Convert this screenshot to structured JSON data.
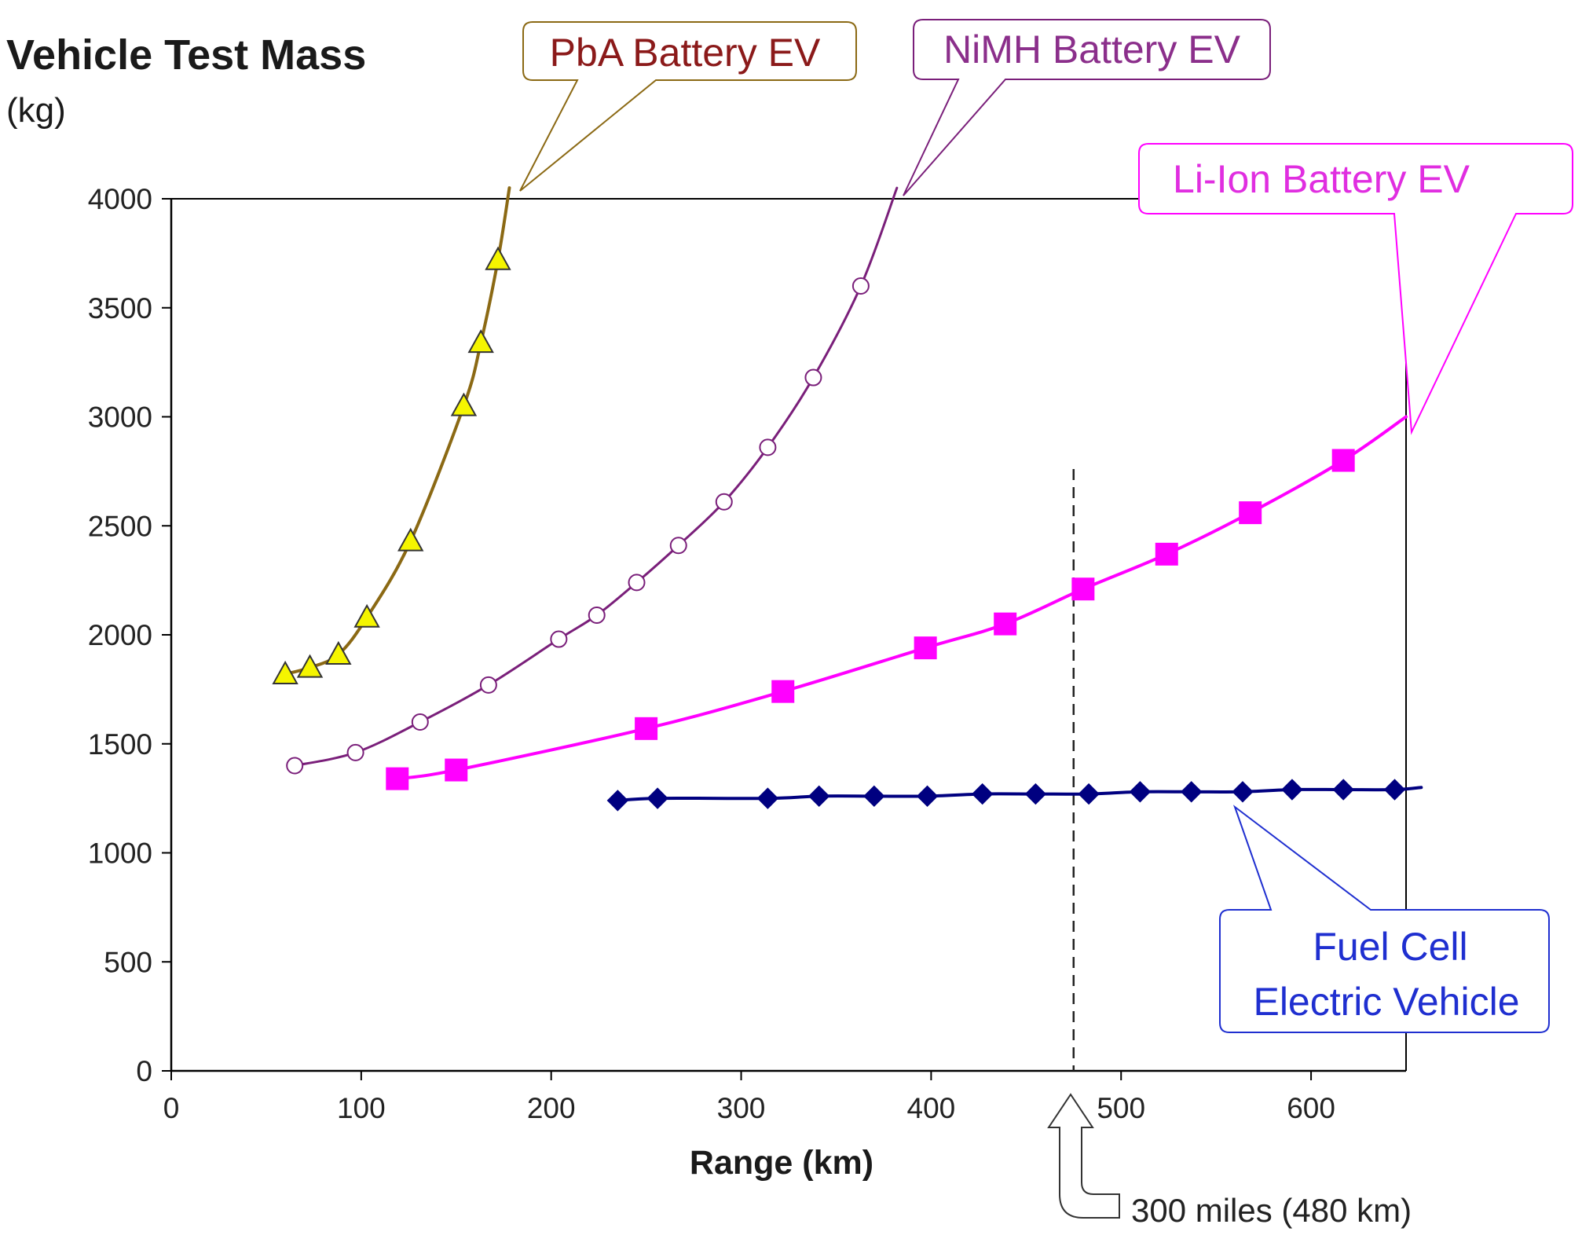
{
  "colors": {
    "pba_line": "#8b6914",
    "pba_marker": "#f5f500",
    "nimh": "#7a1f7a",
    "liion": "#ff00ff",
    "fcev": "#000080",
    "pba_text": "#8b1a1a",
    "nimh_text": "#8b2f8b",
    "liion_text": "#e02ee0",
    "fcev_text": "#1f2fd0"
  },
  "chart_data": {
    "type": "line",
    "ylabel": "Vehicle Test Mass",
    "ylabel_unit": "(kg)",
    "xlabel": "Range (km)",
    "xlim": [
      0,
      650
    ],
    "ylim": [
      0,
      4000
    ],
    "xticks": [
      "0",
      "100",
      "200",
      "300",
      "400",
      "500",
      "600"
    ],
    "yticks": [
      "0",
      "500",
      "1000",
      "1500",
      "2000",
      "2500",
      "3000",
      "3500",
      "4000"
    ],
    "grid": false,
    "series": [
      {
        "name": "PbA Battery EV",
        "marker": "triangle",
        "points": [
          [
            60,
            1820
          ],
          [
            73,
            1850
          ],
          [
            88,
            1910
          ],
          [
            103,
            2080
          ],
          [
            126,
            2430
          ],
          [
            154,
            3050
          ],
          [
            163,
            3340
          ],
          [
            172,
            3720
          ]
        ],
        "curve_end": [
          178,
          4050
        ]
      },
      {
        "name": "NiMH Battery EV",
        "marker": "circle",
        "points": [
          [
            65,
            1400
          ],
          [
            97,
            1460
          ],
          [
            131,
            1600
          ],
          [
            167,
            1770
          ],
          [
            204,
            1980
          ],
          [
            224,
            2090
          ],
          [
            245,
            2240
          ],
          [
            267,
            2410
          ],
          [
            291,
            2610
          ],
          [
            314,
            2860
          ],
          [
            338,
            3180
          ],
          [
            363,
            3600
          ]
        ],
        "curve_end": [
          382,
          4050
        ]
      },
      {
        "name": "Li-Ion Battery EV",
        "marker": "square",
        "points": [
          [
            119,
            1340
          ],
          [
            150,
            1380
          ],
          [
            250,
            1570
          ],
          [
            322,
            1740
          ],
          [
            397,
            1940
          ],
          [
            439,
            2050
          ],
          [
            480,
            2210
          ],
          [
            524,
            2370
          ],
          [
            568,
            2560
          ],
          [
            617,
            2800
          ]
        ],
        "curve_end": [
          650,
          3000
        ]
      },
      {
        "name": "Fuel Cell Electric Vehicle",
        "marker": "diamond",
        "points": [
          [
            235,
            1240
          ],
          [
            256,
            1250
          ],
          [
            314,
            1250
          ],
          [
            341,
            1260
          ],
          [
            370,
            1260
          ],
          [
            398,
            1260
          ],
          [
            427,
            1270
          ],
          [
            455,
            1270
          ],
          [
            483,
            1270
          ],
          [
            510,
            1280
          ],
          [
            537,
            1280
          ],
          [
            564,
            1280
          ],
          [
            590,
            1290
          ],
          [
            617,
            1290
          ],
          [
            644,
            1290
          ]
        ],
        "curve_end": [
          658,
          1300
        ]
      }
    ],
    "annotations": {
      "reference_x": 475,
      "reference_label": "300 miles (480 km)"
    }
  },
  "callouts": {
    "pba": "PbA Battery EV",
    "nimh": "NiMH Battery EV",
    "liion": "Li-Ion Battery EV",
    "fcev_line1": "Fuel Cell",
    "fcev_line2": "Electric Vehicle"
  }
}
